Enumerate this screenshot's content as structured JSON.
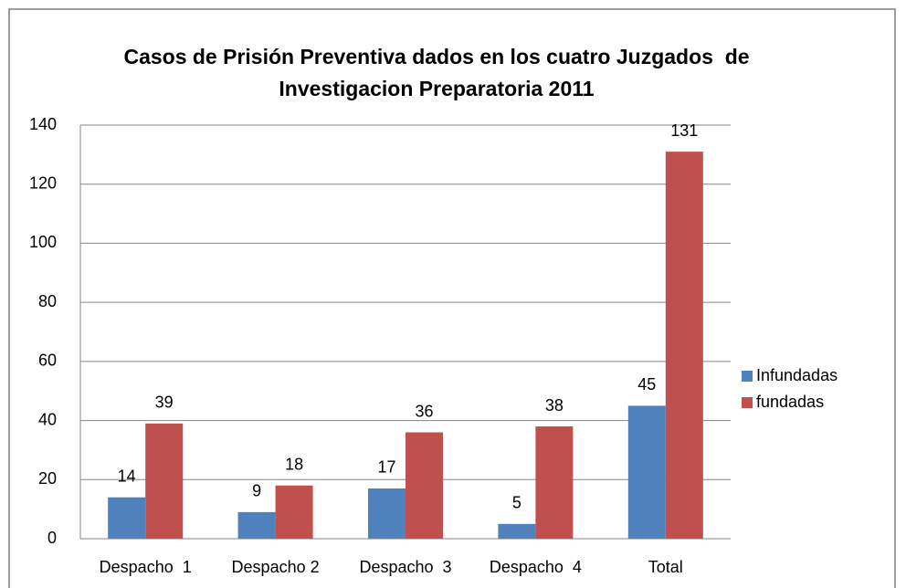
{
  "chart_data": {
    "type": "bar",
    "title": [
      "Casos de Prisión Preventiva dados en los cuatro Juzgados  de",
      "Investigacion Preparatoria 2011"
    ],
    "categories": [
      "Despacho  1",
      "Despacho 2",
      "Despacho  3",
      "Despacho  4",
      "Total"
    ],
    "series": [
      {
        "name": "Infundadas",
        "color": "#4f81bd",
        "values": [
          14,
          9,
          17,
          5,
          45
        ]
      },
      {
        "name": "fundadas",
        "color": "#c0504d",
        "values": [
          39,
          18,
          36,
          38,
          131
        ]
      }
    ],
    "ylim": [
      0,
      140
    ],
    "yticks": [
      0,
      20,
      40,
      60,
      80,
      100,
      120,
      140
    ],
    "grid": true,
    "legend": "right"
  }
}
